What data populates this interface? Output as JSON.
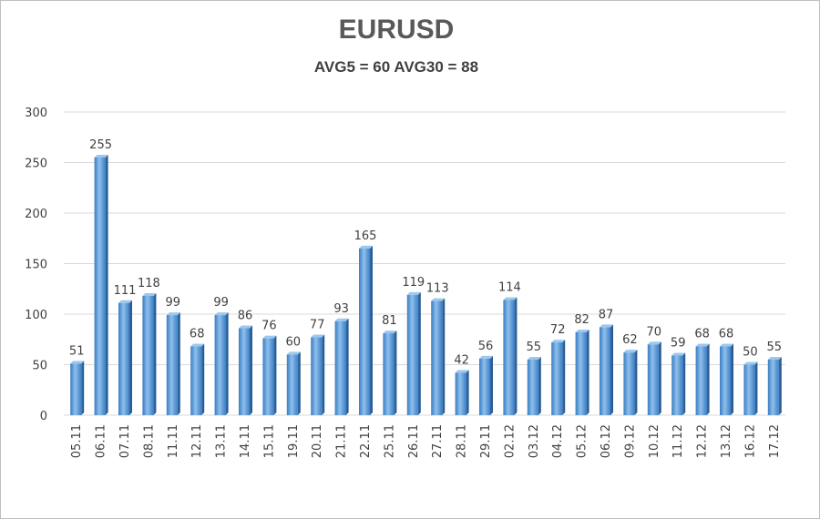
{
  "chart_data": {
    "type": "bar",
    "title": "EURUSD",
    "subtitle": "AVG5 = 60 AVG30 = 88",
    "categories": [
      "05.11",
      "06.11",
      "07.11",
      "08.11",
      "11.11",
      "12.11",
      "13.11",
      "14.11",
      "15.11",
      "19.11",
      "20.11",
      "21.11",
      "22.11",
      "25.11",
      "26.11",
      "27.11",
      "28.11",
      "29.11",
      "02.12",
      "03.12",
      "04.12",
      "05.12",
      "06.12",
      "09.12",
      "10.12",
      "11.12",
      "12.12",
      "13.12",
      "16.12",
      "17.12"
    ],
    "values": [
      51,
      255,
      111,
      118,
      99,
      68,
      99,
      86,
      76,
      60,
      77,
      93,
      165,
      81,
      119,
      113,
      42,
      56,
      114,
      55,
      72,
      82,
      87,
      62,
      70,
      59,
      68,
      68,
      50,
      55
    ],
    "yticks": [
      0,
      50,
      100,
      150,
      200,
      250,
      300
    ],
    "ylim": [
      0,
      300
    ],
    "grid": true,
    "legend": "none",
    "bar_color": "#5b9bd5"
  }
}
